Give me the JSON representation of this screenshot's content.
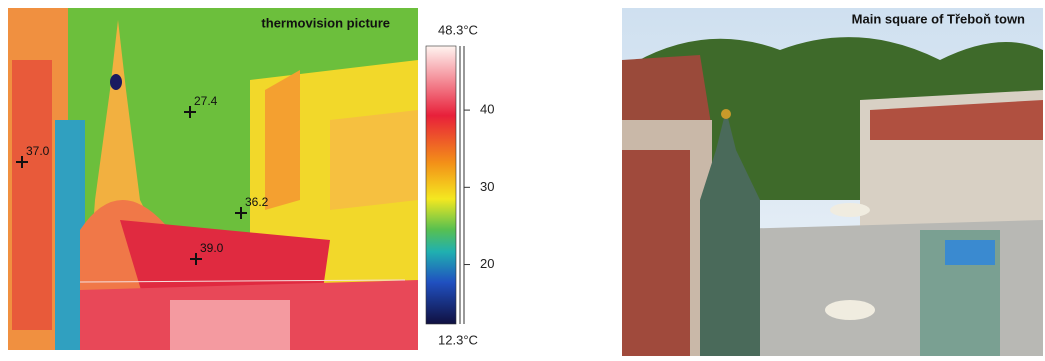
{
  "thermal": {
    "title": "thermovision picture",
    "markers": [
      {
        "label": "27.4"
      },
      {
        "label": "37.0"
      },
      {
        "label": "36.2"
      },
      {
        "label": "39.0"
      }
    ],
    "scale": {
      "max": {
        "value": 48.3,
        "label": "48.3°C"
      },
      "min": {
        "value": 12.3,
        "label": "12.3°C"
      },
      "ticks": [
        20,
        30,
        40
      ]
    }
  },
  "photo": {
    "title": "Main square of Třeboň town"
  }
}
